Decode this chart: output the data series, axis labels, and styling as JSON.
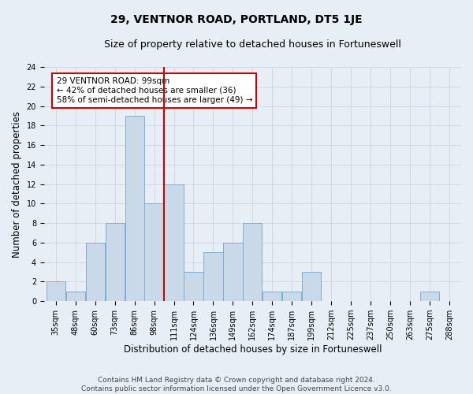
{
  "title": "29, VENTNOR ROAD, PORTLAND, DT5 1JE",
  "subtitle": "Size of property relative to detached houses in Fortuneswell",
  "xlabel": "Distribution of detached houses by size in Fortuneswell",
  "ylabel": "Number of detached properties",
  "footer1": "Contains HM Land Registry data © Crown copyright and database right 2024.",
  "footer2": "Contains public sector information licensed under the Open Government Licence v3.0.",
  "categories": [
    "35sqm",
    "48sqm",
    "60sqm",
    "73sqm",
    "86sqm",
    "98sqm",
    "111sqm",
    "124sqm",
    "136sqm",
    "149sqm",
    "162sqm",
    "174sqm",
    "187sqm",
    "199sqm",
    "212sqm",
    "225sqm",
    "237sqm",
    "250sqm",
    "263sqm",
    "275sqm",
    "288sqm"
  ],
  "values": [
    2,
    1,
    6,
    8,
    19,
    10,
    12,
    3,
    5,
    6,
    8,
    1,
    1,
    3,
    0,
    0,
    0,
    0,
    0,
    1,
    0
  ],
  "bar_color": "#c9d9e8",
  "bar_edge_color": "#7bafd4",
  "vline_color": "#cc0000",
  "annotation_text": "29 VENTNOR ROAD: 99sqm\n← 42% of detached houses are smaller (36)\n58% of semi-detached houses are larger (49) →",
  "annotation_box_color": "white",
  "annotation_box_edge_color": "#cc0000",
  "ylim": [
    0,
    24
  ],
  "yticks": [
    0,
    2,
    4,
    6,
    8,
    10,
    12,
    14,
    16,
    18,
    20,
    22,
    24
  ],
  "grid_color": "#d0d8e8",
  "bg_color": "#e8eef5",
  "title_fontsize": 10,
  "subtitle_fontsize": 9,
  "label_fontsize": 8.5,
  "tick_fontsize": 7,
  "annotation_fontsize": 7.5,
  "footer_fontsize": 6.5
}
